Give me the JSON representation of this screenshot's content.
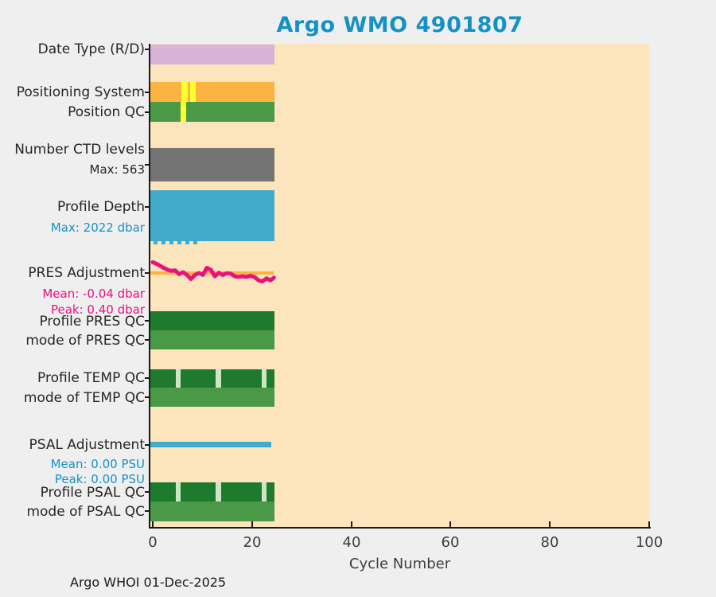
{
  "title": "Argo WMO 4901807",
  "footer": "Argo WHOI 01-Dec-2025",
  "colors": {
    "title_accent": "#1592c4",
    "plot_background": "#fce5bd",
    "page_background": "#efefef",
    "axis": "#1a1a1a",
    "plum": "#d8b2d8",
    "orange": "#fbb342",
    "fault_yellow": "#ffff2e",
    "green_mid": "#4a9947",
    "green_dark": "#1e7b2e",
    "green_pale": "#cde6c4",
    "gray": "#747474",
    "blue": "#42aacb",
    "magenta": "#e8127f"
  },
  "x_axis": {
    "label": "Cycle Number",
    "tick_labels": [
      "0",
      "20",
      "40",
      "60",
      "80",
      "100"
    ]
  },
  "row_labels": [
    {
      "id": "date_type",
      "text": "Date Type (R/D)",
      "style": "main"
    },
    {
      "id": "positioning_system",
      "text": "Positioning System",
      "style": "main"
    },
    {
      "id": "position_qc",
      "text": "Position QC",
      "style": "main"
    },
    {
      "id": "number_ctd_levels",
      "text": "Number CTD levels",
      "style": "main"
    },
    {
      "id": "ctd_max",
      "text": "Max: 563",
      "style": "sub_dark"
    },
    {
      "id": "profile_depth",
      "text": "Profile Depth",
      "style": "main"
    },
    {
      "id": "depth_max",
      "text": "Max: 2022 dbar",
      "style": "sub_blue"
    },
    {
      "id": "pres_adjustment",
      "text": "PRES Adjustment",
      "style": "main"
    },
    {
      "id": "pres_mean",
      "text": "Mean: -0.04 dbar",
      "style": "sub_pink"
    },
    {
      "id": "pres_peak",
      "text": "Peak: 0.40 dbar",
      "style": "sub_pink"
    },
    {
      "id": "profile_pres_qc",
      "text": "Profile PRES QC",
      "style": "main"
    },
    {
      "id": "mode_pres_qc",
      "text": "mode of PRES QC",
      "style": "main"
    },
    {
      "id": "profile_temp_qc",
      "text": "Profile TEMP QC",
      "style": "main"
    },
    {
      "id": "mode_temp_qc",
      "text": "mode of TEMP QC",
      "style": "main"
    },
    {
      "id": "psal_adjustment",
      "text": "PSAL Adjustment",
      "style": "main"
    },
    {
      "id": "psal_mean",
      "text": "Mean: 0.00 PSU",
      "style": "sub_blue"
    },
    {
      "id": "psal_peak",
      "text": "Peak: 0.00 PSU",
      "style": "sub_blue"
    },
    {
      "id": "profile_psal_qc",
      "text": "Profile PSAL QC",
      "style": "main"
    },
    {
      "id": "mode_psal_qc",
      "text": "mode of PSAL QC",
      "style": "main"
    }
  ],
  "chart_data": {
    "type": "multi-row-status-timeline",
    "title": "Argo WMO 4901807",
    "xlabel": "Cycle Number",
    "x_range": [
      0,
      100
    ],
    "x_ticks": [
      0,
      20,
      40,
      60,
      80,
      100
    ],
    "cycles_with_data": [
      0,
      24.5
    ],
    "rows": [
      {
        "id": "date_type",
        "label": "Date Type (R/D)",
        "kind": "bar",
        "color": "#d8b2d8",
        "span": [
          0,
          24.5
        ],
        "stripes": []
      },
      {
        "id": "positioning_system",
        "label": "Positioning System",
        "kind": "bar",
        "color": "#fbb342",
        "span": [
          0,
          24.5
        ],
        "stripes": [
          {
            "from": 5.7,
            "to": 7.0,
            "color": "#ffff2e"
          },
          {
            "from": 7.6,
            "to": 8.8,
            "color": "#ffff2e"
          }
        ]
      },
      {
        "id": "position_qc",
        "label": "Position QC",
        "kind": "bar",
        "color": "#4a9947",
        "span": [
          0,
          24.5
        ],
        "stripes": [
          {
            "from": 5.6,
            "to": 6.7,
            "color": "#ffff2e"
          }
        ]
      },
      {
        "id": "number_ctd_levels",
        "label": "Number CTD levels",
        "annotation": "Max: 563",
        "kind": "bar",
        "color": "#747474",
        "span": [
          0,
          24.5
        ],
        "stripes": []
      },
      {
        "id": "profile_depth",
        "label": "Profile Depth",
        "annotation": "Max: 2022 dbar",
        "kind": "bar",
        "color": "#42aacb",
        "span": [
          0,
          24.5
        ],
        "stripes": [],
        "deeper_segments": [
          [
            0.2,
            1.0
          ],
          [
            1.8,
            2.6
          ],
          [
            3.4,
            4.2
          ],
          [
            5.0,
            5.8
          ],
          [
            6.6,
            7.4
          ],
          [
            8.2,
            9.0
          ]
        ]
      },
      {
        "id": "pres_adjustment",
        "label": "PRES Adjustment",
        "kind": "line",
        "unit": "dbar",
        "mean": -0.04,
        "peak": 0.4,
        "color": "#e8127f",
        "zero_line": {
          "color": "#fbb342",
          "span": [
            0,
            24.4
          ]
        },
        "points": [
          [
            0,
            0.4
          ],
          [
            0.5,
            0.36
          ],
          [
            1,
            0.32
          ],
          [
            2,
            0.21
          ],
          [
            3,
            0.12
          ],
          [
            3.7,
            0.08
          ],
          [
            4.5,
            0.1
          ],
          [
            5.3,
            -0.04
          ],
          [
            6.1,
            0.03
          ],
          [
            6.9,
            -0.07
          ],
          [
            7.7,
            -0.22
          ],
          [
            8.5,
            -0.07
          ],
          [
            9.3,
            0.0
          ],
          [
            10.1,
            -0.07
          ],
          [
            10.9,
            0.19
          ],
          [
            11.7,
            0.12
          ],
          [
            12.5,
            -0.12
          ],
          [
            13.3,
            0.01
          ],
          [
            14.1,
            -0.07
          ],
          [
            14.9,
            -0.01
          ],
          [
            15.7,
            -0.02
          ],
          [
            16.5,
            -0.12
          ],
          [
            17.3,
            -0.14
          ],
          [
            18.1,
            -0.12
          ],
          [
            18.9,
            -0.14
          ],
          [
            19.7,
            -0.1
          ],
          [
            20.5,
            -0.15
          ],
          [
            21.3,
            -0.27
          ],
          [
            22.1,
            -0.31
          ],
          [
            22.9,
            -0.2
          ],
          [
            23.7,
            -0.27
          ],
          [
            24.4,
            -0.17
          ]
        ]
      },
      {
        "id": "profile_pres_qc",
        "label": "Profile PRES QC",
        "kind": "bar",
        "color": "#1e7b2e",
        "span": [
          0,
          24.5
        ],
        "stripes": []
      },
      {
        "id": "mode_pres_qc",
        "label": "mode of PRES QC",
        "kind": "bar",
        "color": "#4a9947",
        "span": [
          0,
          24.5
        ],
        "stripes": []
      },
      {
        "id": "profile_temp_qc",
        "label": "Profile TEMP QC",
        "kind": "bar",
        "color": "#1e7b2e",
        "span": [
          0,
          24.5
        ],
        "stripes": [
          {
            "from": 4.6,
            "to": 5.6,
            "color": "#cde6c4"
          },
          {
            "from": 12.6,
            "to": 13.7,
            "color": "#cde6c4"
          },
          {
            "from": 22.0,
            "to": 22.9,
            "color": "#cde6c4"
          }
        ]
      },
      {
        "id": "mode_temp_qc",
        "label": "mode of TEMP QC",
        "kind": "bar",
        "color": "#4a9947",
        "span": [
          0,
          24.5
        ],
        "stripes": []
      },
      {
        "id": "psal_adjustment",
        "label": "PSAL Adjustment",
        "kind": "flat-line",
        "unit": "PSU",
        "mean": 0.0,
        "peak": 0.0,
        "value": 0.0,
        "color": "#42aacb",
        "span": [
          0,
          23.9
        ]
      },
      {
        "id": "profile_psal_qc",
        "label": "Profile PSAL QC",
        "kind": "bar",
        "color": "#1e7b2e",
        "span": [
          0,
          24.5
        ],
        "stripes": [
          {
            "from": 4.6,
            "to": 5.6,
            "color": "#cde6c4"
          },
          {
            "from": 12.6,
            "to": 13.7,
            "color": "#cde6c4"
          },
          {
            "from": 22.0,
            "to": 22.9,
            "color": "#cde6c4"
          }
        ]
      },
      {
        "id": "mode_psal_qc",
        "label": "mode of PSAL QC",
        "kind": "bar",
        "color": "#4a9947",
        "span": [
          0,
          24.5
        ],
        "stripes": []
      }
    ]
  }
}
